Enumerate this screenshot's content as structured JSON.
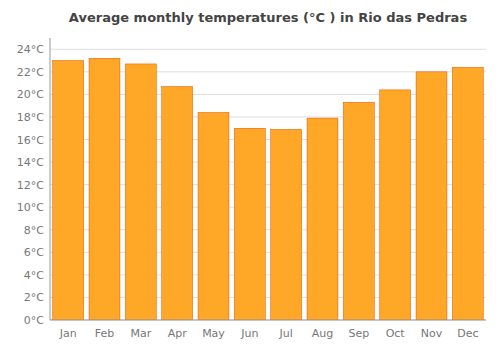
{
  "chart_data": {
    "type": "bar",
    "title": "Average monthly temperatures (°C ) in Rio das Pedras",
    "categories": [
      "Jan",
      "Feb",
      "Mar",
      "Apr",
      "May",
      "Jun",
      "Jul",
      "Aug",
      "Sep",
      "Oct",
      "Nov",
      "Dec"
    ],
    "values": [
      23.0,
      23.2,
      22.7,
      20.7,
      18.4,
      17.0,
      16.9,
      17.9,
      19.3,
      20.4,
      22.0,
      22.4
    ],
    "color": "#FFA726",
    "ylim": [
      0,
      25
    ],
    "yticks": [
      {
        "value": 0,
        "label": "0°C"
      },
      {
        "value": 2,
        "label": "2°C"
      },
      {
        "value": 4,
        "label": "4°C"
      },
      {
        "value": 6,
        "label": "6°C"
      },
      {
        "value": 8,
        "label": "8°C"
      },
      {
        "value": 10,
        "label": "10°C"
      },
      {
        "value": 12,
        "label": "12°C"
      },
      {
        "value": 14,
        "label": "14°C"
      },
      {
        "value": 16,
        "label": "16°C"
      },
      {
        "value": 18,
        "label": "18°C"
      },
      {
        "value": 20,
        "label": "20°C"
      },
      {
        "value": 22,
        "label": "22°C"
      },
      {
        "value": 24,
        "label": "24°C"
      }
    ],
    "grid": true
  }
}
